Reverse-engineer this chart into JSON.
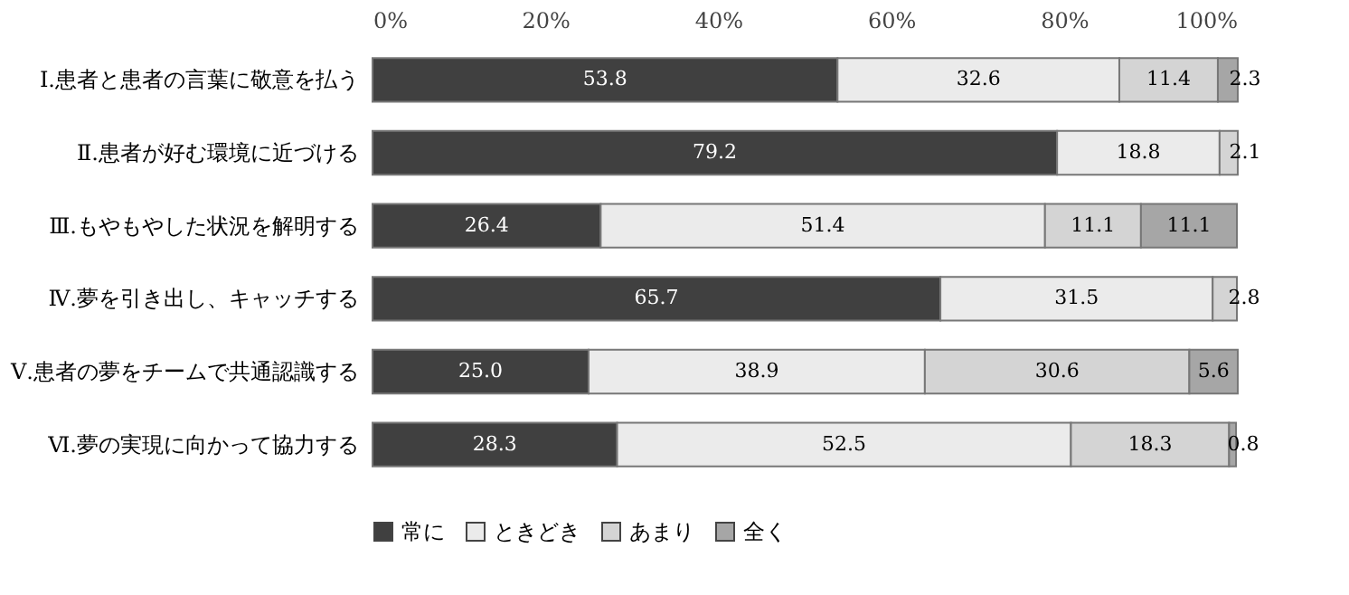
{
  "chart_data": {
    "type": "bar",
    "orientation": "horizontal",
    "stacked": true,
    "categories": [
      "Ⅰ.患者と患者の言葉に敬意を払う",
      "Ⅱ.患者が好む環境に近づける",
      "Ⅲ.もやもやした状況を解明する",
      "Ⅳ.夢を引き出し、キャッチする",
      "Ⅴ.患者の夢をチームで共通認識する",
      "Ⅵ.夢の実現に向かって協力する"
    ],
    "series": [
      {
        "name": "常に",
        "color": "#404040",
        "values": [
          53.8,
          79.2,
          26.4,
          65.7,
          25.0,
          28.3
        ],
        "value_labels": [
          "53.8",
          "79.2",
          "26.4",
          "65.7",
          "25.0",
          "28.3"
        ]
      },
      {
        "name": "ときどき",
        "color": "#ebebeb",
        "values": [
          32.6,
          18.8,
          51.4,
          31.5,
          38.9,
          52.5
        ],
        "value_labels": [
          "32.6",
          "18.8",
          "51.4",
          "31.5",
          "38.9",
          "52.5"
        ]
      },
      {
        "name": "あまり",
        "color": "#d4d4d4",
        "values": [
          11.4,
          2.1,
          11.1,
          2.8,
          30.6,
          18.3
        ],
        "value_labels": [
          "11.4",
          "2.1",
          "11.1",
          "2.8",
          "30.6",
          "18.3"
        ]
      },
      {
        "name": "全く",
        "color": "#a6a6a6",
        "values": [
          2.3,
          null,
          11.1,
          null,
          5.6,
          0.8
        ],
        "value_labels": [
          "2.3",
          null,
          "11.1",
          null,
          "5.6",
          "0.8"
        ]
      }
    ],
    "xlim": [
      0,
      100
    ],
    "xticks": [
      {
        "value": 0,
        "label": "0%"
      },
      {
        "value": 20,
        "label": "20%"
      },
      {
        "value": 40,
        "label": "40%"
      },
      {
        "value": 60,
        "label": "60%"
      },
      {
        "value": 80,
        "label": "80%"
      },
      {
        "value": 100,
        "label": "100%"
      }
    ],
    "grid": false,
    "legend": "bottom"
  }
}
